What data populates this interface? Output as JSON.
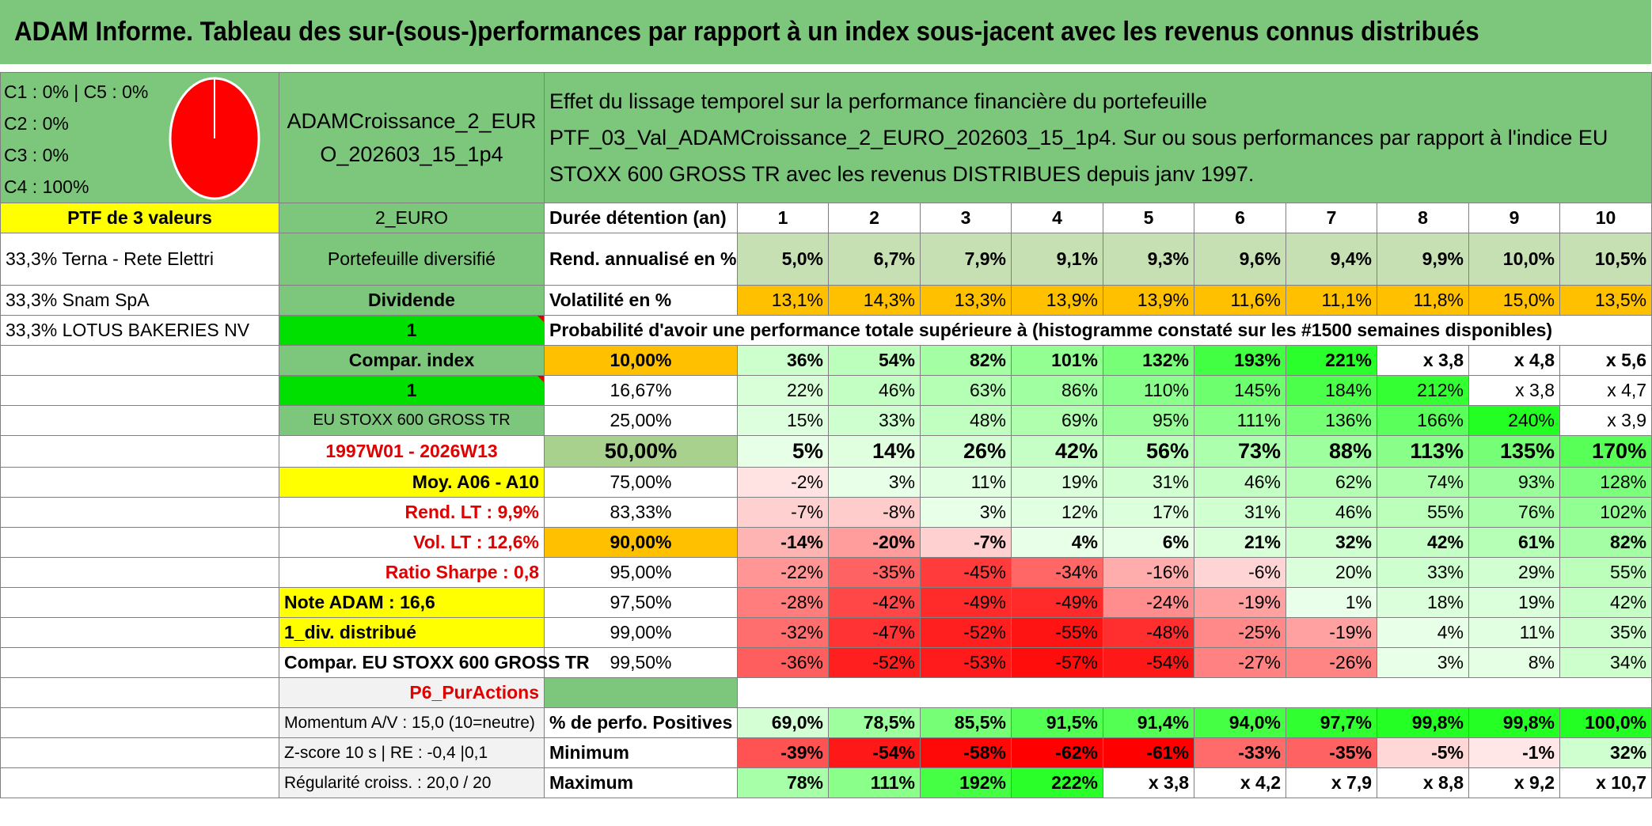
{
  "title": "ADAM Informe. Tableau des sur-(sous-)performances par rapport à un index sous-jacent avec les revenus connus distribués",
  "pie_legend": [
    "C1 : 0% | C5 : 0%",
    "C2 : 0%",
    "C3 : 0%",
    "C4 : 100%"
  ],
  "fund_name": "ADAMCroissance_2_EURO_202603_15_1p4",
  "description": "Effet du lissage temporel sur la performance financière du portefeuille PTF_03_Val_ADAMCroissance_2_EURO_202603_15_1p4. Sur ou sous performances par rapport à l'indice EU STOXX 600 GROSS TR avec les revenus DISTRIBUES depuis janv 1997.",
  "left_col": {
    "ptf": "PTF de 3 valeurs",
    "holdings": [
      "33,3% Terna - Rete Elettri",
      "33,3% Snam SpA",
      "33,3% LOTUS BAKERIES NV"
    ]
  },
  "mid_col": {
    "currency": "2_EURO",
    "portfolio_type": "Portefeuille diversifié",
    "dividend_label": "Dividende",
    "dividend_value": "1",
    "compar_label": "Compar. index",
    "compar_value": "1",
    "index_name": "EU STOXX 600 GROSS TR",
    "period": "1997W01 - 2026W13",
    "moy": "Moy. A06 - A10",
    "rend_lt": "Rend. LT : 9,9%",
    "vol_lt": "Vol. LT : 12,6%",
    "sharpe": "Ratio Sharpe : 0,8",
    "note": "Note ADAM : 16,6",
    "div_distrib": "1_div. distribué",
    "compar_full": "Compar. EU STOXX 600 GROSS TR",
    "p6": "P6_PurActions",
    "momentum": "Momentum A/V : 15,0 (10=neutre)",
    "zscore": "Z-score 10 s | RE : -0,4 |0,1",
    "regularite": "Régularité croiss. : 20,0 / 20"
  },
  "header_row": {
    "label": "Durée détention (an)",
    "years": [
      "1",
      "2",
      "3",
      "4",
      "5",
      "6",
      "7",
      "8",
      "9",
      "10"
    ]
  },
  "rend_row": {
    "label": "Rend. annualisé en %",
    "values": [
      "5,0%",
      "6,7%",
      "7,9%",
      "9,1%",
      "9,3%",
      "9,6%",
      "9,4%",
      "9,9%",
      "10,0%",
      "10,5%"
    ]
  },
  "vol_row": {
    "label": "Volatilité en %",
    "values": [
      "13,1%",
      "14,3%",
      "13,3%",
      "13,9%",
      "13,9%",
      "11,6%",
      "11,1%",
      "11,8%",
      "15,0%",
      "13,5%"
    ]
  },
  "prob_title": "Probabilité d'avoir une performance totale supérieure à (histogramme constaté sur les #1500 semaines disponibles)",
  "quantile_rows": [
    {
      "q": "10,00%",
      "values": [
        "36%",
        "54%",
        "82%",
        "101%",
        "132%",
        "193%",
        "221%",
        "x 3,8",
        "x 4,8",
        "x 5,6"
      ]
    },
    {
      "q": "16,67%",
      "values": [
        "22%",
        "46%",
        "63%",
        "86%",
        "110%",
        "145%",
        "184%",
        "212%",
        "x 3,8",
        "x 4,7"
      ]
    },
    {
      "q": "25,00%",
      "values": [
        "15%",
        "33%",
        "48%",
        "69%",
        "95%",
        "111%",
        "136%",
        "166%",
        "240%",
        "x 3,9"
      ]
    },
    {
      "q": "50,00%",
      "values": [
        "5%",
        "14%",
        "26%",
        "42%",
        "56%",
        "73%",
        "88%",
        "113%",
        "135%",
        "170%"
      ]
    },
    {
      "q": "75,00%",
      "values": [
        "-2%",
        "3%",
        "11%",
        "19%",
        "31%",
        "46%",
        "62%",
        "74%",
        "93%",
        "128%"
      ]
    },
    {
      "q": "83,33%",
      "values": [
        "-7%",
        "-8%",
        "3%",
        "12%",
        "17%",
        "31%",
        "46%",
        "55%",
        "76%",
        "102%"
      ]
    },
    {
      "q": "90,00%",
      "values": [
        "-14%",
        "-20%",
        "-7%",
        "4%",
        "6%",
        "21%",
        "32%",
        "42%",
        "61%",
        "82%"
      ]
    },
    {
      "q": "95,00%",
      "values": [
        "-22%",
        "-35%",
        "-45%",
        "-34%",
        "-16%",
        "-6%",
        "20%",
        "33%",
        "29%",
        "55%"
      ]
    },
    {
      "q": "97,50%",
      "values": [
        "-28%",
        "-42%",
        "-49%",
        "-49%",
        "-24%",
        "-19%",
        "1%",
        "18%",
        "19%",
        "42%"
      ]
    },
    {
      "q": "99,00%",
      "values": [
        "-32%",
        "-47%",
        "-52%",
        "-55%",
        "-48%",
        "-25%",
        "-19%",
        "4%",
        "11%",
        "35%"
      ]
    },
    {
      "q": "99,50%",
      "values": [
        "-36%",
        "-52%",
        "-53%",
        "-57%",
        "-54%",
        "-27%",
        "-26%",
        "3%",
        "8%",
        "34%"
      ]
    }
  ],
  "pos_row": {
    "label": "% de perfo. Positives",
    "values": [
      "69,0%",
      "78,5%",
      "85,5%",
      "91,5%",
      "91,4%",
      "94,0%",
      "97,7%",
      "99,8%",
      "99,8%",
      "100,0%"
    ]
  },
  "min_row": {
    "label": "Minimum",
    "values": [
      "-39%",
      "-54%",
      "-58%",
      "-62%",
      "-61%",
      "-33%",
      "-35%",
      "-5%",
      "-1%",
      "32%"
    ]
  },
  "max_row": {
    "label": "Maximum",
    "values": [
      "78%",
      "111%",
      "192%",
      "222%",
      "x 3,8",
      "x 4,2",
      "x 7,9",
      "x 8,8",
      "x 9,2",
      "x 10,7"
    ]
  },
  "colors": {
    "banner": "#7dc77d",
    "yellow": "#ffff00",
    "green": "#7dc77d",
    "bright_green": "#00e000",
    "orange": "#ffc000",
    "olive": "#a9d18e",
    "pie_fill": "#ff0000",
    "red_text": "#e00000"
  }
}
